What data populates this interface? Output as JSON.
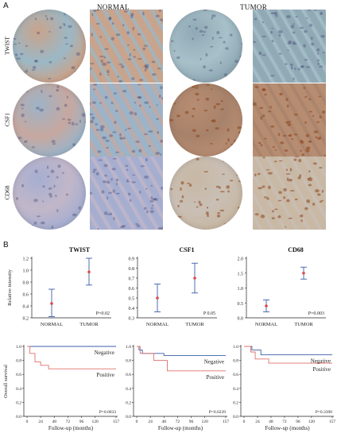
{
  "panel_a": {
    "letter": "A",
    "header_left": "NORMAL",
    "header_right": "TUMOR",
    "rows": [
      {
        "label": "TWIST",
        "normal_bg": "#9bb8c6",
        "normal_tissue": "#c9a38b",
        "tumor_bg": "#a8c0c9",
        "tumor_tissue": "#8fa9b5"
      },
      {
        "label": "CSF1",
        "normal_bg": "#c7a89f",
        "normal_tissue": "#9db3c7",
        "tumor_bg": "#a7826a",
        "tumor_tissue": "#b78d72"
      },
      {
        "label": "CD68",
        "normal_bg": "#c2b7c9",
        "normal_tissue": "#a6aed0",
        "tumor_bg": "#c9bfb5",
        "tumor_tissue": "#c8b8a4"
      }
    ]
  },
  "panel_b": {
    "letter": "B",
    "ylabel_top": "Relative intensity",
    "ylabel_bottom": "Overall survival",
    "chart_data": [
      {
        "type": "scatter",
        "title": "TWIST",
        "categories": [
          "NORMAL",
          "TUMOR"
        ],
        "means": [
          0.44,
          0.97
        ],
        "lower": [
          0.22,
          0.75
        ],
        "upper": [
          0.68,
          1.2
        ],
        "ylim": [
          0.2,
          1.2
        ],
        "yticks": [
          "1.2",
          "1.0",
          "0.8",
          "0.6",
          "0.4",
          "0.2"
        ],
        "ptext": "P=0.02"
      },
      {
        "type": "scatter",
        "title": "CSF1",
        "categories": [
          "NORMAL",
          "TUMOR"
        ],
        "means": [
          0.5,
          0.7
        ],
        "lower": [
          0.36,
          0.55
        ],
        "upper": [
          0.64,
          0.85
        ],
        "ylim": [
          0.3,
          0.9
        ],
        "yticks": [
          "0.9",
          "0.8",
          "0.7",
          "0.6",
          "0.5",
          "0.4",
          "0.3"
        ],
        "ptext": "P 0.05"
      },
      {
        "type": "scatter",
        "title": "CD68",
        "categories": [
          "NORMAL",
          "TUMOR"
        ],
        "means": [
          0.4,
          1.5
        ],
        "lower": [
          0.2,
          1.3
        ],
        "upper": [
          0.6,
          1.7
        ],
        "ylim": [
          0.0,
          2.0
        ],
        "yticks": [
          "2.0",
          "1.5",
          "1.0",
          "0.5",
          "0.0"
        ],
        "ptext": "P=0.003"
      },
      {
        "type": "line",
        "xlabel": "Follow-up (months)",
        "xticks": [
          "0",
          "24",
          "48",
          "72",
          "96",
          "120",
          "157"
        ],
        "yticks": [
          "1.0",
          "0.8",
          "0.6",
          "0.4",
          "0.2",
          "0.0"
        ],
        "series": [
          {
            "name": "Negative",
            "color": "#3b5ea8",
            "points": [
              [
                0,
                1.0
              ],
              [
                157,
                1.0
              ]
            ]
          },
          {
            "name": "Positive",
            "color": "#e0706a",
            "points": [
              [
                0,
                1.0
              ],
              [
                5,
                1.0
              ],
              [
                5,
                0.9
              ],
              [
                14,
                0.9
              ],
              [
                14,
                0.78
              ],
              [
                24,
                0.78
              ],
              [
                24,
                0.73
              ],
              [
                38,
                0.73
              ],
              [
                38,
                0.68
              ],
              [
                157,
                0.68
              ]
            ]
          }
        ],
        "ptext": "P=0.0033"
      },
      {
        "type": "line",
        "xlabel": "Follow-up (months)",
        "xticks": [
          "0",
          "24",
          "48",
          "72",
          "96",
          "120",
          "157"
        ],
        "yticks": [
          "1.0",
          "0.8",
          "0.6",
          "0.4",
          "0.2",
          "0.0"
        ],
        "series": [
          {
            "name": "Negative",
            "color": "#3b5ea8",
            "points": [
              [
                0,
                1.0
              ],
              [
                4,
                1.0
              ],
              [
                4,
                0.95
              ],
              [
                10,
                0.95
              ],
              [
                10,
                0.9
              ],
              [
                48,
                0.9
              ],
              [
                48,
                0.87
              ],
              [
                157,
                0.87
              ]
            ]
          },
          {
            "name": "Positive",
            "color": "#e0706a",
            "points": [
              [
                0,
                1.0
              ],
              [
                6,
                1.0
              ],
              [
                6,
                0.9
              ],
              [
                30,
                0.9
              ],
              [
                30,
                0.8
              ],
              [
                54,
                0.8
              ],
              [
                54,
                0.65
              ],
              [
                157,
                0.65
              ]
            ]
          }
        ],
        "ptext": "P=0.0239"
      },
      {
        "type": "line",
        "xlabel": "Follow-up (months)",
        "xticks": [
          "0",
          "24",
          "48",
          "72",
          "96",
          "120",
          "157"
        ],
        "yticks": [
          "1.0",
          "0.8",
          "0.6",
          "0.4",
          "0.2",
          "0.0"
        ],
        "series": [
          {
            "name": "Negative",
            "color": "#3b5ea8",
            "points": [
              [
                0,
                1.0
              ],
              [
                14,
                1.0
              ],
              [
                14,
                0.95
              ],
              [
                30,
                0.95
              ],
              [
                30,
                0.88
              ],
              [
                157,
                0.88
              ]
            ]
          },
          {
            "name": "Positive",
            "color": "#e0706a",
            "points": [
              [
                0,
                1.0
              ],
              [
                12,
                1.0
              ],
              [
                12,
                0.92
              ],
              [
                20,
                0.92
              ],
              [
                20,
                0.82
              ],
              [
                44,
                0.82
              ],
              [
                44,
                0.76
              ],
              [
                157,
                0.76
              ]
            ]
          }
        ],
        "ptext": "P=0.3390"
      }
    ]
  }
}
